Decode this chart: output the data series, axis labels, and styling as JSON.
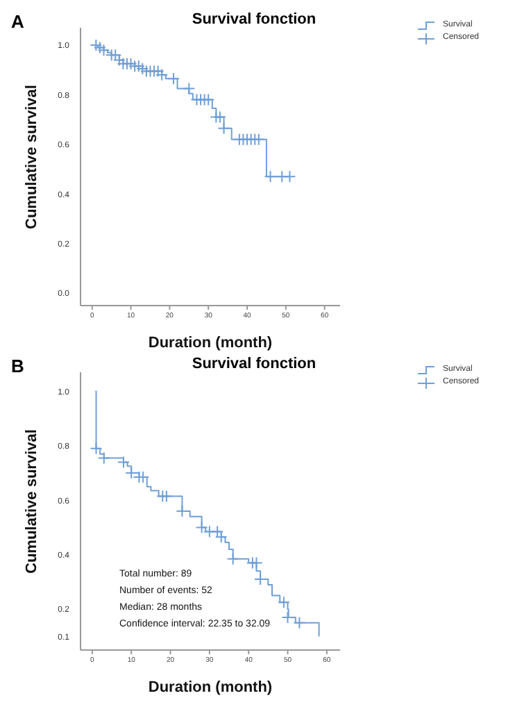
{
  "chart_data": [
    {
      "type": "step",
      "title": "Survival fonction",
      "xlabel": "Duration (month)",
      "ylabel": "Cumulative survival",
      "annotations": [
        "A"
      ],
      "legend": "top right",
      "xlim": [
        -3,
        64
      ],
      "xticks": [
        0,
        10,
        20,
        30,
        40,
        50,
        60
      ],
      "ylim": [
        -0.05,
        1.07
      ],
      "yticks": [
        {
          "value": 0,
          "label": "0.0"
        },
        {
          "value": 0.2,
          "label": "0.2"
        },
        {
          "value": 0.4,
          "label": "0.4"
        },
        {
          "value": 0.6,
          "label": "0.6"
        },
        {
          "value": 0.8,
          "label": "0.8"
        },
        {
          "value": 1,
          "label": "1.0"
        }
      ],
      "series": [
        {
          "name": "Survival",
          "color": "#6f9fd6",
          "x": [
            0,
            1.5,
            3,
            4,
            5,
            7,
            8,
            11,
            13,
            14,
            18,
            19,
            22,
            25,
            26,
            31,
            32,
            34,
            36,
            45,
            51
          ],
          "values": [
            1,
            0.99,
            0.98,
            0.97,
            0.96,
            0.94,
            0.925,
            0.915,
            0.905,
            0.895,
            0.88,
            0.865,
            0.825,
            0.805,
            0.78,
            0.745,
            0.71,
            0.665,
            0.62,
            0.47,
            0.47
          ]
        },
        {
          "name": "Censored",
          "type": "scatter",
          "marker": "cross",
          "color": "#6f9fd6",
          "x": [
            1,
            2,
            3,
            5,
            6,
            7,
            8,
            9,
            10,
            11,
            12,
            13,
            14,
            15,
            16,
            17,
            18,
            21,
            25,
            27,
            28,
            29,
            30,
            32,
            33,
            34,
            38,
            39,
            40,
            41,
            42,
            43,
            46,
            49,
            51
          ],
          "values": [
            1,
            0.99,
            0.98,
            0.96,
            0.96,
            0.94,
            0.925,
            0.925,
            0.925,
            0.915,
            0.915,
            0.905,
            0.895,
            0.895,
            0.895,
            0.895,
            0.88,
            0.865,
            0.825,
            0.78,
            0.78,
            0.78,
            0.78,
            0.71,
            0.71,
            0.665,
            0.62,
            0.62,
            0.62,
            0.62,
            0.62,
            0.62,
            0.47,
            0.47,
            0.47
          ]
        }
      ]
    },
    {
      "type": "step",
      "title": "Survival fonction",
      "xlabel": "Duration (month)",
      "ylabel": "Cumulative survival",
      "annotations": [
        "B",
        "Total number: 89",
        "Number of events: 52",
        "Median: 28 months",
        "Confidence interval: 22.35 to 32.09"
      ],
      "legend": "top right",
      "xlim": [
        -3,
        63.4
      ],
      "xticks": [
        0,
        10,
        20,
        30,
        40,
        50,
        60
      ],
      "ylim": [
        0.05,
        1.07
      ],
      "yticks": [
        {
          "value": 0.1,
          "label": "0.1"
        },
        {
          "value": 0.2,
          "label": "0.2"
        },
        {
          "value": 0.4,
          "label": "0.4"
        },
        {
          "value": 0.6,
          "label": "0.6"
        },
        {
          "value": 0.8,
          "label": "0.8"
        },
        {
          "value": 1,
          "label": "1.0"
        }
      ],
      "series": [
        {
          "name": "Survival",
          "color": "#6f9fd6",
          "x": [
            0.8,
            1,
            2,
            3,
            8,
            9,
            10,
            12,
            14,
            15,
            17,
            23,
            25,
            28,
            29,
            33,
            34,
            35,
            36,
            40,
            42,
            43,
            45,
            46,
            48,
            50,
            50.2,
            52,
            58,
            58
          ],
          "values": [
            1,
            0.79,
            0.77,
            0.755,
            0.74,
            0.725,
            0.7,
            0.685,
            0.65,
            0.635,
            0.615,
            0.56,
            0.54,
            0.5,
            0.485,
            0.465,
            0.445,
            0.42,
            0.385,
            0.37,
            0.34,
            0.31,
            0.29,
            0.25,
            0.225,
            0.2,
            0.17,
            0.15,
            0.15,
            0.1
          ]
        },
        {
          "name": "Censored",
          "type": "scatter",
          "marker": "cross",
          "color": "#6f9fd6",
          "x": [
            1,
            3,
            8,
            10,
            12,
            13,
            18,
            19,
            23,
            28,
            30,
            32,
            33,
            36,
            41,
            42,
            43,
            49,
            50,
            53
          ],
          "values": [
            0.79,
            0.755,
            0.74,
            0.7,
            0.685,
            0.685,
            0.615,
            0.615,
            0.56,
            0.5,
            0.485,
            0.485,
            0.465,
            0.385,
            0.37,
            0.37,
            0.31,
            0.225,
            0.17,
            0.15
          ]
        }
      ]
    }
  ]
}
